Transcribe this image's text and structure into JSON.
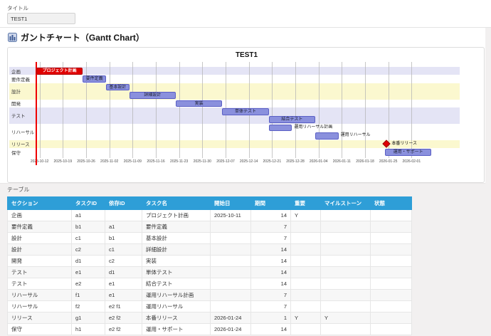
{
  "title_field": {
    "label": "タイトル",
    "value": "TEST1"
  },
  "section_header": {
    "icon": "gantt-chart-icon",
    "text": "ガントチャート（Gantt Chart）"
  },
  "chart_data": {
    "type": "gantt",
    "title": "TEST1",
    "origin_date": "2025-10-11",
    "today_line": "2025-10-11",
    "axis_ticks": [
      "2025-10-12",
      "2025-10-19",
      "2025-10-26",
      "2025-11-02",
      "2025-11-09",
      "2025-11-16",
      "2025-11-23",
      "2025-11-30",
      "2025-12-07",
      "2025-12-14",
      "2025-12-21",
      "2025-12-28",
      "2026-01-04",
      "2026-01-11",
      "2026-01-18",
      "2026-01-25",
      "2026-02-01"
    ],
    "band_cycle": [
      "lavender",
      "white",
      "yellow",
      "white"
    ],
    "band_colors": {
      "lavender": "#e4e4f5",
      "white": "#ffffff",
      "yellow": "#fbf8cf"
    },
    "task_color": "#8a90dd",
    "crit_color": "#e00000",
    "sections": [
      {
        "name": "企画",
        "tasks": 1
      },
      {
        "name": "要件定義",
        "tasks": 1
      },
      {
        "name": "設計",
        "tasks": 2
      },
      {
        "name": "開発",
        "tasks": 1
      },
      {
        "name": "テスト",
        "tasks": 2
      },
      {
        "name": "リハーサル",
        "tasks": 2
      },
      {
        "name": "リリース",
        "tasks": 1
      },
      {
        "name": "保守",
        "tasks": 1
      }
    ],
    "tasks": [
      {
        "label": "プロジェクト計画",
        "section": "企画",
        "start": "2025-10-11",
        "days": 14,
        "type": "crit"
      },
      {
        "label": "要件定義",
        "section": "要件定義",
        "start": "2025-10-25",
        "days": 7,
        "type": "task"
      },
      {
        "label": "基本設計",
        "section": "設計",
        "start": "2025-11-01",
        "days": 7,
        "type": "task"
      },
      {
        "label": "詳細設計",
        "section": "設計",
        "start": "2025-11-08",
        "days": 14,
        "type": "task"
      },
      {
        "label": "実装",
        "section": "開発",
        "start": "2025-11-22",
        "days": 14,
        "type": "task"
      },
      {
        "label": "単体テスト",
        "section": "テスト",
        "start": "2025-12-06",
        "days": 14,
        "type": "task"
      },
      {
        "label": "結合テスト",
        "section": "テスト",
        "start": "2025-12-20",
        "days": 14,
        "type": "task"
      },
      {
        "label": "運用リハーサル計画",
        "section": "リハーサル",
        "start": "2025-12-20",
        "days": 7,
        "type": "task",
        "label_outside": true
      },
      {
        "label": "運用リハーサル",
        "section": "リハーサル",
        "start": "2026-01-03",
        "days": 7,
        "type": "task",
        "label_outside": true
      },
      {
        "label": "本番リリース",
        "section": "リリース",
        "start": "2026-01-24",
        "days": 1,
        "type": "milestone"
      },
      {
        "label": "運用・サポート",
        "section": "保守",
        "start": "2026-01-24",
        "days": 14,
        "type": "task"
      }
    ]
  },
  "table_section": {
    "label": "テーブル",
    "headers": [
      "セクション",
      "タスクID",
      "依存ID",
      "タスク名",
      "開始日",
      "期間",
      "重要",
      "マイルストーン",
      "状態"
    ],
    "rows": [
      [
        "企画",
        "a1",
        "",
        "プロジェクト計画",
        "2025-10-11",
        "14",
        "Y",
        "",
        ""
      ],
      [
        "要件定義",
        "b1",
        "a1",
        "要件定義",
        "",
        "7",
        "",
        "",
        ""
      ],
      [
        "設計",
        "c1",
        "b1",
        "基本設計",
        "",
        "7",
        "",
        "",
        ""
      ],
      [
        "設計",
        "c2",
        "c1",
        "詳細設計",
        "",
        "14",
        "",
        "",
        ""
      ],
      [
        "開発",
        "d1",
        "c2",
        "実装",
        "",
        "14",
        "",
        "",
        ""
      ],
      [
        "テスト",
        "e1",
        "d1",
        "単体テスト",
        "",
        "14",
        "",
        "",
        ""
      ],
      [
        "テスト",
        "e2",
        "e1",
        "結合テスト",
        "",
        "14",
        "",
        "",
        ""
      ],
      [
        "リハーサル",
        "f1",
        "e1",
        "運用リハーサル計画",
        "",
        "7",
        "",
        "",
        ""
      ],
      [
        "リハーサル",
        "f2",
        "e2 f1",
        "運用リハーサル",
        "",
        "7",
        "",
        "",
        ""
      ],
      [
        "リリース",
        "g1",
        "e2 f2",
        "本番リリース",
        "2026-01-24",
        "1",
        "Y",
        "Y",
        ""
      ],
      [
        "保守",
        "h1",
        "e2 f2",
        "運用・サポート",
        "2026-01-24",
        "14",
        "",
        "",
        ""
      ]
    ]
  }
}
